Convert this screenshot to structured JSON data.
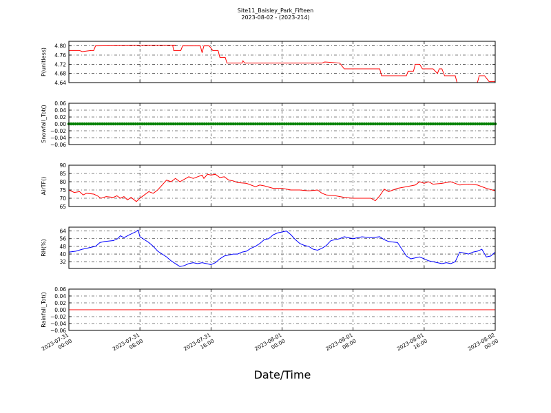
{
  "title_line1": "Site11_Baisley_Park_Fifteen",
  "title_line2": "2023-08-02 - (2023-214)",
  "xlabel": "Date/Time",
  "x_ticks": [
    {
      "v": 0,
      "l1": "2023-07-31",
      "l2": "00:00"
    },
    {
      "v": 8,
      "l1": "2023-07-31",
      "l2": "08:00"
    },
    {
      "v": 16,
      "l1": "2023-07-31",
      "l2": "16:00"
    },
    {
      "v": 24,
      "l1": "2023-08-01",
      "l2": "00:00"
    },
    {
      "v": 32,
      "l1": "2023-08-01",
      "l2": "08:00"
    },
    {
      "v": 40,
      "l1": "2023-08-01",
      "l2": "16:00"
    },
    {
      "v": 48,
      "l1": "2023-08-02",
      "l2": "00:00"
    }
  ],
  "chart_data": [
    {
      "type": "line",
      "name": "pressure",
      "ylabel": "P(unitless)",
      "color": "#ff0000",
      "ylim": [
        4.64,
        4.82
      ],
      "yticks": [
        "4.64",
        "4.68",
        "4.72",
        "4.76",
        "4.80"
      ],
      "grid": true,
      "points": [
        [
          0,
          4.78
        ],
        [
          1.2,
          4.78
        ],
        [
          1.5,
          4.775
        ],
        [
          2.5,
          4.78
        ],
        [
          2.8,
          4.78
        ],
        [
          3.0,
          4.8
        ],
        [
          8,
          4.802
        ],
        [
          12,
          4.802
        ],
        [
          11.7,
          4.8
        ],
        [
          11.8,
          4.78
        ],
        [
          12.6,
          4.78
        ],
        [
          12.8,
          4.8
        ],
        [
          14.8,
          4.8
        ],
        [
          15.0,
          4.77
        ],
        [
          15.2,
          4.8
        ],
        [
          15.8,
          4.8
        ],
        [
          16.2,
          4.78
        ],
        [
          16.8,
          4.78
        ],
        [
          17.0,
          4.75
        ],
        [
          17.6,
          4.75
        ],
        [
          17.8,
          4.725
        ],
        [
          19.5,
          4.725
        ],
        [
          19.6,
          4.735
        ],
        [
          19.8,
          4.725
        ],
        [
          25,
          4.725
        ],
        [
          28.5,
          4.725
        ],
        [
          28.8,
          4.73
        ],
        [
          29.5,
          4.728
        ],
        [
          30.5,
          4.725
        ],
        [
          31.0,
          4.7
        ],
        [
          33.0,
          4.7
        ],
        [
          35.0,
          4.7
        ],
        [
          35.2,
          4.67
        ],
        [
          38.0,
          4.67
        ],
        [
          38.2,
          4.69
        ],
        [
          38.8,
          4.69
        ],
        [
          39.0,
          4.72
        ],
        [
          39.5,
          4.72
        ],
        [
          39.8,
          4.7
        ],
        [
          40.5,
          4.7
        ],
        [
          41.0,
          4.7
        ],
        [
          41.5,
          4.68
        ],
        [
          41.7,
          4.7
        ],
        [
          42.0,
          4.7
        ],
        [
          42.3,
          4.67
        ],
        [
          43.5,
          4.67
        ],
        [
          43.7,
          4.64
        ],
        [
          44.5,
          4.64
        ],
        [
          46.0,
          4.64
        ],
        [
          46.2,
          4.67
        ],
        [
          46.8,
          4.67
        ],
        [
          47.3,
          4.645
        ],
        [
          48,
          4.645
        ]
      ]
    },
    {
      "type": "scatter",
      "name": "snowfall",
      "ylabel": "Snowfall_Tot()",
      "color": "#008000",
      "ylim": [
        -0.06,
        0.06
      ],
      "yticks": [
        "−0.06",
        "−0.04",
        "−0.02",
        "0.00",
        "0.02",
        "0.04",
        "0.06"
      ],
      "grid": true,
      "constant_value": 0.0,
      "x_range": [
        0,
        48
      ],
      "interval_hours": 0.25
    },
    {
      "type": "line",
      "name": "airtemp",
      "ylabel": "AirTF()",
      "color": "#ff0000",
      "ylim": [
        65,
        90
      ],
      "yticks": [
        "65",
        "70",
        "75",
        "80",
        "85",
        "90"
      ],
      "grid": true,
      "points": [
        [
          0,
          75
        ],
        [
          0.6,
          73.5
        ],
        [
          1.2,
          74
        ],
        [
          1.6,
          72
        ],
        [
          2,
          73
        ],
        [
          2.8,
          72.5
        ],
        [
          3.2,
          71.5
        ],
        [
          3.6,
          70
        ],
        [
          4.2,
          71
        ],
        [
          5,
          70.5
        ],
        [
          5.4,
          71.5
        ],
        [
          5.8,
          70
        ],
        [
          6.2,
          71
        ],
        [
          6.6,
          69
        ],
        [
          7,
          70.5
        ],
        [
          7.6,
          68
        ],
        [
          8,
          70
        ],
        [
          8.5,
          72
        ],
        [
          9,
          74
        ],
        [
          9.5,
          73
        ],
        [
          10,
          75
        ],
        [
          10.5,
          78
        ],
        [
          11,
          81
        ],
        [
          11.5,
          80
        ],
        [
          12,
          82
        ],
        [
          12.5,
          80
        ],
        [
          13,
          81.5
        ],
        [
          13.5,
          83
        ],
        [
          14,
          82
        ],
        [
          14.5,
          83
        ],
        [
          15,
          84
        ],
        [
          15.2,
          82
        ],
        [
          15.6,
          84.5
        ],
        [
          16,
          84
        ],
        [
          16.5,
          84.5
        ],
        [
          17,
          82.5
        ],
        [
          17.5,
          83
        ],
        [
          18,
          81
        ],
        [
          18.5,
          80.5
        ],
        [
          19,
          79.5
        ],
        [
          20,
          79
        ],
        [
          21,
          77
        ],
        [
          21.5,
          78
        ],
        [
          22,
          77.5
        ],
        [
          23,
          76
        ],
        [
          24,
          76
        ],
        [
          25,
          75
        ],
        [
          26,
          75
        ],
        [
          27,
          74.5
        ],
        [
          28,
          75
        ],
        [
          28.5,
          73
        ],
        [
          29,
          72
        ],
        [
          30,
          71.5
        ],
        [
          31,
          70.5
        ],
        [
          32,
          70
        ],
        [
          33,
          70
        ],
        [
          34,
          70
        ],
        [
          34.5,
          68.5
        ],
        [
          35,
          71.5
        ],
        [
          35.5,
          75.5
        ],
        [
          36,
          74
        ],
        [
          36.5,
          75
        ],
        [
          37,
          76
        ],
        [
          38,
          77
        ],
        [
          39,
          78
        ],
        [
          39.5,
          80
        ],
        [
          40,
          79
        ],
        [
          40.5,
          80
        ],
        [
          41,
          78.5
        ],
        [
          42,
          79
        ],
        [
          43,
          80
        ],
        [
          44,
          78
        ],
        [
          45,
          78.5
        ],
        [
          46,
          78
        ],
        [
          47,
          76
        ],
        [
          48,
          74.5
        ]
      ]
    },
    {
      "type": "line",
      "name": "humidity",
      "ylabel": "RH(%)",
      "color": "#0000ff",
      "ylim": [
        25,
        68
      ],
      "yticks": [
        "32",
        "40",
        "48",
        "56",
        "64"
      ],
      "grid": true,
      "points": [
        [
          0,
          42
        ],
        [
          0.8,
          43
        ],
        [
          1.5,
          45
        ],
        [
          2,
          46
        ],
        [
          2.5,
          47
        ],
        [
          3,
          48
        ],
        [
          3.5,
          52
        ],
        [
          4,
          53
        ],
        [
          5,
          54
        ],
        [
          5.5,
          56
        ],
        [
          5.8,
          59
        ],
        [
          6.2,
          57
        ],
        [
          6.8,
          60
        ],
        [
          7.5,
          63
        ],
        [
          7.8,
          65
        ],
        [
          8,
          58
        ],
        [
          8.5,
          55
        ],
        [
          9,
          52
        ],
        [
          9.5,
          48
        ],
        [
          10,
          43
        ],
        [
          10.5,
          40
        ],
        [
          11,
          37
        ],
        [
          11.5,
          33
        ],
        [
          12,
          30
        ],
        [
          12.5,
          27
        ],
        [
          13,
          28
        ],
        [
          13.5,
          30
        ],
        [
          14,
          31
        ],
        [
          14.5,
          30
        ],
        [
          15,
          31
        ],
        [
          15.5,
          30
        ],
        [
          16,
          29
        ],
        [
          16.5,
          31
        ],
        [
          17,
          35
        ],
        [
          17.5,
          38
        ],
        [
          18,
          39
        ],
        [
          18.5,
          40
        ],
        [
          19,
          40
        ],
        [
          19.5,
          42
        ],
        [
          20,
          43
        ],
        [
          20.5,
          46
        ],
        [
          21,
          48
        ],
        [
          21.5,
          51
        ],
        [
          22,
          55
        ],
        [
          22.5,
          56
        ],
        [
          23,
          60
        ],
        [
          23.5,
          62
        ],
        [
          24,
          63
        ],
        [
          24.5,
          64
        ],
        [
          25,
          60
        ],
        [
          25.5,
          55
        ],
        [
          26,
          51
        ],
        [
          26.5,
          49
        ],
        [
          27,
          48
        ],
        [
          27.5,
          45
        ],
        [
          28,
          44
        ],
        [
          28.5,
          46
        ],
        [
          29,
          49
        ],
        [
          29.5,
          54
        ],
        [
          30,
          55
        ],
        [
          30.5,
          56
        ],
        [
          31,
          58
        ],
        [
          31.5,
          57
        ],
        [
          32,
          56
        ],
        [
          33,
          58
        ],
        [
          34,
          57
        ],
        [
          35,
          58
        ],
        [
          35.5,
          55
        ],
        [
          36,
          53
        ],
        [
          37,
          52
        ],
        [
          37.5,
          45
        ],
        [
          38,
          38
        ],
        [
          38.5,
          35
        ],
        [
          39,
          36
        ],
        [
          39.5,
          37
        ],
        [
          40,
          35
        ],
        [
          40.5,
          33
        ],
        [
          41,
          32
        ],
        [
          41.5,
          31
        ],
        [
          42,
          30
        ],
        [
          42.5,
          31
        ],
        [
          43,
          30
        ],
        [
          43.5,
          32
        ],
        [
          44,
          42
        ],
        [
          44.5,
          41
        ],
        [
          45,
          40
        ],
        [
          45.5,
          42
        ],
        [
          46,
          43
        ],
        [
          46.5,
          45
        ],
        [
          47,
          37
        ],
        [
          47.5,
          38
        ],
        [
          48,
          42
        ]
      ]
    },
    {
      "type": "line",
      "name": "rainfall",
      "ylabel": "Rainfall_Tot()",
      "color": "#ff0000",
      "ylim": [
        -0.06,
        0.06
      ],
      "yticks": [
        "−0.06",
        "−0.04",
        "−0.02",
        "0.00",
        "0.02",
        "0.04",
        "0.06"
      ],
      "grid": true,
      "points": [
        [
          0,
          0.0
        ],
        [
          48,
          0.0
        ]
      ]
    }
  ]
}
